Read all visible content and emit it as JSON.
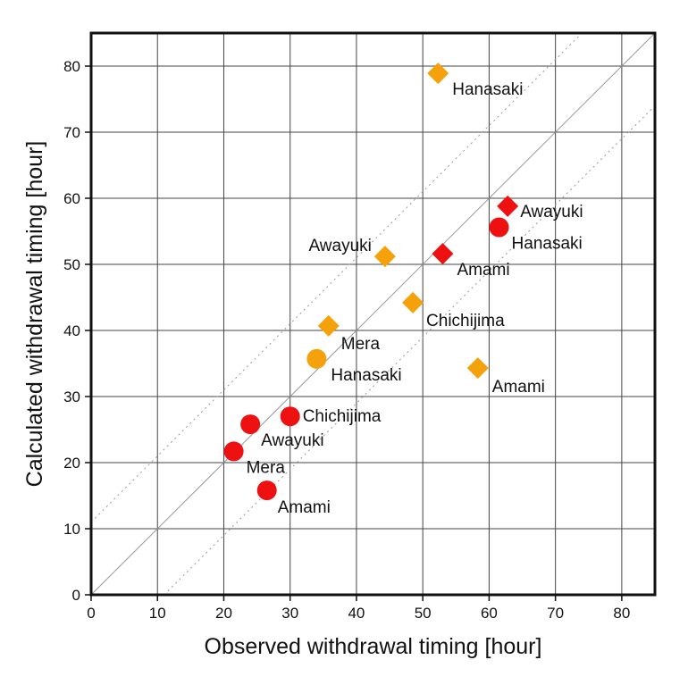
{
  "chart_data": {
    "type": "scatter",
    "title": "",
    "xlabel": "Observed withdrawal timing [hour]",
    "ylabel": "Calculated withdrawal timing [hour]",
    "xlim": [
      0,
      85
    ],
    "ylim": [
      0,
      85
    ],
    "xticks": [
      0,
      10,
      20,
      30,
      40,
      50,
      60,
      70,
      80
    ],
    "yticks": [
      0,
      10,
      20,
      30,
      40,
      50,
      60,
      70,
      80
    ],
    "grid": true,
    "reference_lines": [
      {
        "style": "solid",
        "slope": 1,
        "intercept": 0
      },
      {
        "style": "dotted",
        "slope": 1,
        "intercept": 11
      },
      {
        "style": "dotted",
        "slope": 1,
        "intercept": -11
      }
    ],
    "colors": {
      "red": "#ee1111",
      "orange": "#f5a10c"
    },
    "series": [
      {
        "marker": "circle",
        "color": "red",
        "points": [
          {
            "x": 21.5,
            "y": 21.7,
            "label": "Mera"
          },
          {
            "x": 24.0,
            "y": 25.8,
            "label": "Awayuki"
          },
          {
            "x": 30.0,
            "y": 27.0,
            "label": "Chichijima"
          },
          {
            "x": 26.5,
            "y": 15.8,
            "label": "Amami"
          },
          {
            "x": 61.5,
            "y": 55.6,
            "label": "Hanasaki"
          }
        ]
      },
      {
        "marker": "diamond",
        "color": "red",
        "points": [
          {
            "x": 62.8,
            "y": 58.8,
            "label": "Awayuki"
          },
          {
            "x": 53.0,
            "y": 51.6,
            "label": "Amami"
          }
        ]
      },
      {
        "marker": "circle",
        "color": "orange",
        "points": [
          {
            "x": 34.0,
            "y": 35.7,
            "label": "Hanasaki"
          }
        ]
      },
      {
        "marker": "diamond",
        "color": "orange",
        "points": [
          {
            "x": 52.3,
            "y": 78.9,
            "label": "Hanasaki"
          },
          {
            "x": 44.3,
            "y": 51.2,
            "label": "Awayuki"
          },
          {
            "x": 48.5,
            "y": 44.2,
            "label": "Chichijima"
          },
          {
            "x": 35.8,
            "y": 40.7,
            "label": "Mera"
          },
          {
            "x": 58.3,
            "y": 34.3,
            "label": "Amami"
          }
        ]
      }
    ]
  }
}
